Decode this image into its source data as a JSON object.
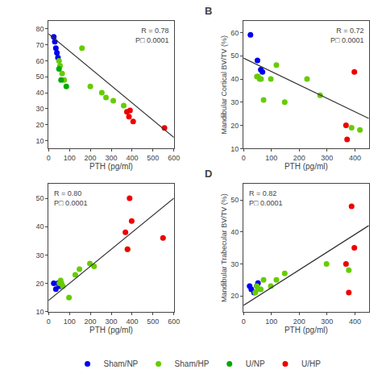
{
  "chart_data": [
    {
      "type": "scatter",
      "xlabel": "PTH (pg/ml)",
      "xlim": [
        0,
        600
      ],
      "xticks": [
        0,
        100,
        200,
        300,
        400,
        500,
        600
      ],
      "ylim": [
        5,
        85
      ],
      "yticks": [
        10,
        20,
        30,
        40,
        50,
        60,
        70,
        80
      ],
      "grid": false,
      "legend": "bottom",
      "marker": "circle",
      "annotations": [
        "R = 0.78\nP□ 0.0001"
      ],
      "series": [
        {
          "name": "Sham/NP",
          "color": "#0000ee",
          "x": [
            25,
            30,
            35,
            40,
            45
          ],
          "values": [
            75,
            72,
            68,
            65,
            62
          ]
        },
        {
          "name": "Sham/HP",
          "color": "#66cc00",
          "x": [
            50,
            55,
            65,
            75,
            160,
            200,
            255,
            275,
            310,
            360
          ],
          "values": [
            60,
            57,
            52,
            48,
            68,
            44,
            40,
            37,
            35,
            32
          ]
        },
        {
          "name": "U/NP",
          "color": "#00aa00",
          "x": [
            50,
            60,
            85
          ],
          "values": [
            55,
            48,
            44
          ]
        },
        {
          "name": "U/HP",
          "color": "#ee0000",
          "x": [
            375,
            385,
            390,
            405,
            555
          ],
          "values": [
            28,
            25,
            29,
            22,
            18
          ]
        },
        {
          "type": "line",
          "color": "#333333",
          "x": [
            0,
            600
          ],
          "values": [
            77,
            12
          ]
        }
      ]
    },
    {
      "type": "scatter",
      "title": "B",
      "xlabel": "PTH (pg/ml)",
      "ylabel": "Mandibular Cortical BV/TV (%)",
      "xlim": [
        0,
        450
      ],
      "xticks": [
        0,
        100,
        200,
        300,
        400
      ],
      "ylim": [
        10,
        65
      ],
      "yticks": [
        10,
        20,
        30,
        40,
        50,
        60
      ],
      "grid": false,
      "legend": "bottom",
      "marker": "circle",
      "annotations": [
        "R = 0.72\nP□ 0.0001"
      ],
      "series": [
        {
          "name": "Sham/NP",
          "color": "#0000ee",
          "x": [
            25,
            50,
            62,
            68
          ],
          "values": [
            59,
            48,
            44,
            43
          ]
        },
        {
          "name": "Sham/HP",
          "color": "#66cc00",
          "x": [
            48,
            52,
            58,
            63,
            72,
            98,
            118,
            148,
            228,
            275,
            388,
            418
          ],
          "values": [
            41,
            41,
            40,
            40,
            31,
            40,
            46,
            30,
            40,
            33,
            19,
            18
          ]
        },
        {
          "name": "U/NP",
          "color": "#00aa00",
          "x": [],
          "values": []
        },
        {
          "name": "U/HP",
          "color": "#ee0000",
          "x": [
            368,
            372,
            398
          ],
          "values": [
            20,
            14,
            43
          ]
        },
        {
          "type": "line",
          "color": "#333333",
          "x": [
            0,
            450
          ],
          "values": [
            49,
            23
          ]
        }
      ]
    },
    {
      "type": "scatter",
      "xlabel": "PTH (pg/ml)",
      "xlim": [
        0,
        600
      ],
      "xticks": [
        0,
        100,
        200,
        300,
        400,
        500,
        600
      ],
      "ylim": [
        10,
        55
      ],
      "yticks": [
        10,
        20,
        30,
        40,
        50
      ],
      "grid": false,
      "legend": "bottom",
      "marker": "circle",
      "annotations": [
        "R = 0.80\nP□ 0.0001"
      ],
      "series": [
        {
          "name": "Sham/NP",
          "color": "#0000ee",
          "x": [
            25,
            35,
            45,
            52,
            58
          ],
          "values": [
            20,
            18,
            20,
            19,
            19
          ]
        },
        {
          "name": "Sham/HP",
          "color": "#66cc00",
          "x": [
            52,
            58,
            62,
            68,
            98,
            128,
            148,
            198,
            218,
            378
          ],
          "values": [
            20,
            21,
            20,
            19,
            15,
            23,
            25,
            27,
            26,
            32
          ]
        },
        {
          "name": "U/NP",
          "color": "#00aa00",
          "x": [],
          "values": []
        },
        {
          "name": "U/HP",
          "color": "#ee0000",
          "x": [
            368,
            378,
            388,
            398,
            548
          ],
          "values": [
            38,
            32,
            50,
            42,
            36
          ]
        },
        {
          "type": "line",
          "color": "#333333",
          "x": [
            0,
            600
          ],
          "values": [
            14,
            50
          ]
        }
      ]
    },
    {
      "type": "scatter",
      "title": "D",
      "xlabel": "PTH (pg/ml)",
      "ylabel": "Mandibular Trabecular BV/TV (%)",
      "xlim": [
        0,
        450
      ],
      "xticks": [
        0,
        100,
        200,
        300,
        400
      ],
      "ylim": [
        15,
        55
      ],
      "yticks": [
        20,
        30,
        40,
        50
      ],
      "grid": false,
      "legend": "bottom",
      "marker": "circle",
      "annotations": [
        "R = 0.82\nP□ 0.0001"
      ],
      "series": [
        {
          "name": "Sham/NP",
          "color": "#0000ee",
          "x": [
            22,
            28,
            38,
            48,
            52
          ],
          "values": [
            23,
            22,
            21,
            23,
            24
          ]
        },
        {
          "name": "Sham/HP",
          "color": "#66cc00",
          "x": [
            42,
            48,
            52,
            62,
            72,
            98,
            118,
            148,
            298,
            378
          ],
          "values": [
            21,
            23,
            22,
            22,
            25,
            23,
            25,
            27,
            30,
            28
          ]
        },
        {
          "name": "U/NP",
          "color": "#00aa00",
          "x": [],
          "values": []
        },
        {
          "name": "U/HP",
          "color": "#ee0000",
          "x": [
            368,
            378,
            388,
            398
          ],
          "values": [
            30,
            21,
            48,
            35
          ]
        },
        {
          "type": "line",
          "color": "#333333",
          "x": [
            0,
            450
          ],
          "values": [
            17,
            42
          ]
        }
      ]
    }
  ]
}
